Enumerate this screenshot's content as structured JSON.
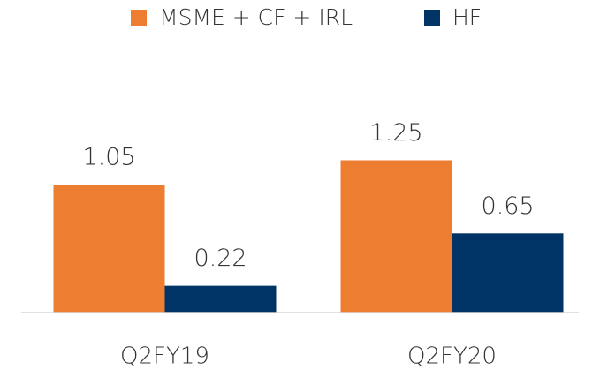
{
  "chart_data": {
    "type": "bar",
    "categories": [
      "Q2FY19",
      "Q2FY20"
    ],
    "series": [
      {
        "name": "MSME + CF + IRL",
        "color": "#ED7D31",
        "values": [
          1.05,
          1.25
        ]
      },
      {
        "name": "HF",
        "color": "#003366",
        "values": [
          0.22,
          0.65
        ]
      }
    ],
    "ylim": [
      0,
      1.5
    ],
    "legend": "top"
  }
}
